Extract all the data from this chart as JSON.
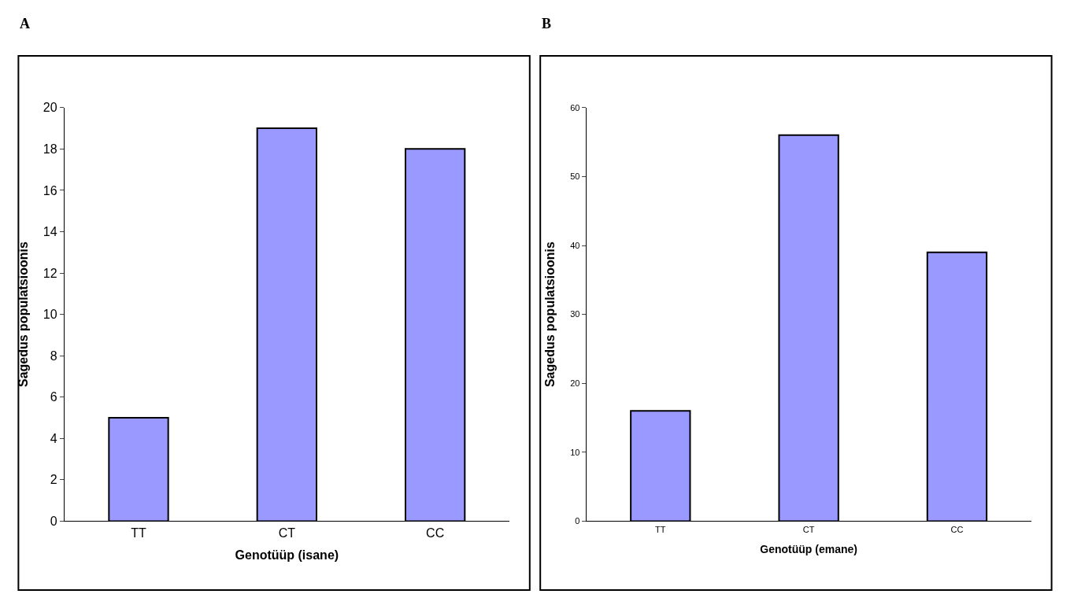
{
  "chart_data": [
    {
      "type": "bar",
      "title": "A",
      "categories": [
        "TT",
        "CT",
        "CC"
      ],
      "values": [
        5,
        19,
        18
      ],
      "color": "#9999ff",
      "xlabel": "Genotüüp (isane)",
      "ylabel": "Sagedus populatsioonis",
      "ylim": [
        0,
        20
      ],
      "yticks": [
        0,
        2,
        4,
        6,
        8,
        10,
        12,
        14,
        16,
        18,
        20
      ]
    },
    {
      "type": "bar",
      "title": "B",
      "categories": [
        "TT",
        "CT",
        "CC"
      ],
      "values": [
        16,
        56,
        39
      ],
      "color": "#9999ff",
      "xlabel": "Genotüüp (emane)",
      "ylabel": "Sagedus populatsioonis",
      "ylim": [
        0,
        60
      ],
      "yticks": [
        0,
        10,
        20,
        30,
        40,
        50,
        60
      ]
    }
  ]
}
